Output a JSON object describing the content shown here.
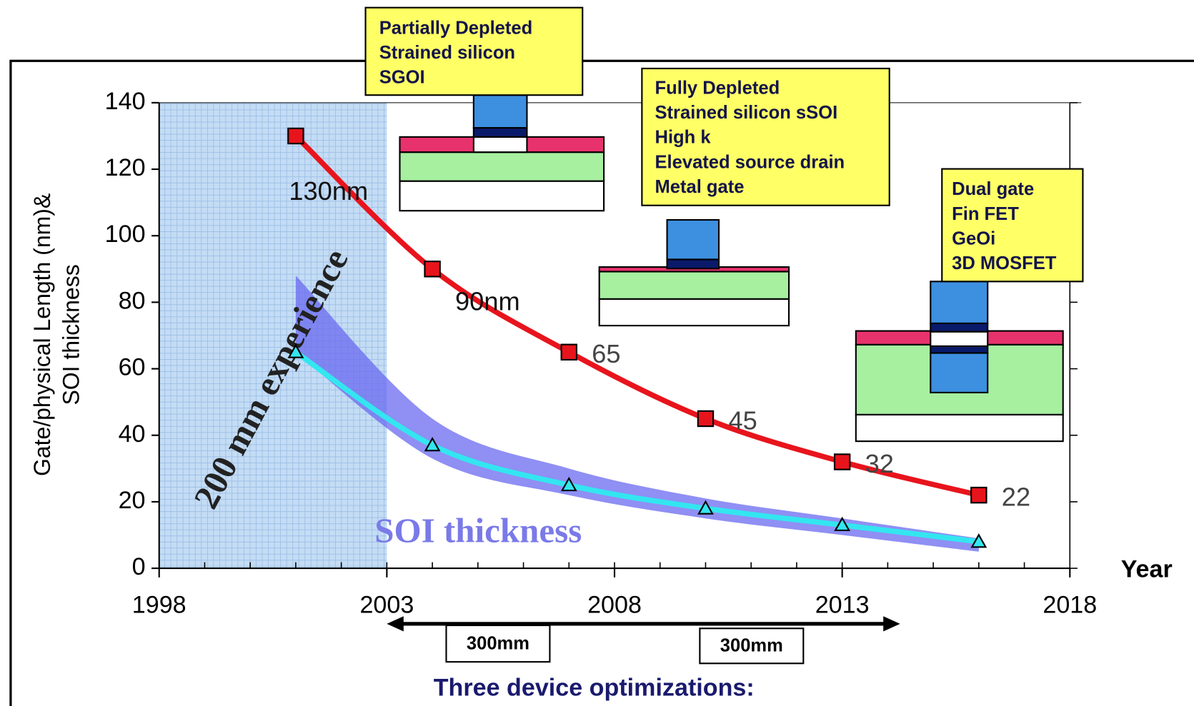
{
  "chart_data": {
    "type": "line",
    "y_label": [
      "Gate/physical Length (nm)&",
      "SOI thickness"
    ],
    "x_label": "Year",
    "x": [
      2001,
      2004,
      2007,
      2010,
      2013,
      2016
    ],
    "gate_length": {
      "values": [
        130,
        90,
        65,
        45,
        32,
        22
      ],
      "value_labels": [
        "130nm",
        "90nm",
        "65",
        "45",
        "32",
        "22"
      ],
      "color": "#e8141c"
    },
    "soi": {
      "name": "SOI thickness",
      "values": [
        65,
        37,
        25,
        18,
        13,
        8
      ],
      "color": "#33e6f0"
    },
    "soi_band": {
      "upper": [
        88,
        45,
        30,
        21,
        15,
        9
      ],
      "lower": [
        65,
        33,
        22,
        15,
        10,
        5
      ],
      "color": "#6a6af0"
    },
    "shaded_range": [
      1998,
      2003
    ],
    "xlim": [
      1998,
      2018
    ],
    "xticks": [
      1998,
      2003,
      2008,
      2013,
      2018
    ],
    "ylim": [
      0,
      140
    ],
    "yticks": [
      0,
      20,
      40,
      60,
      80,
      100,
      120,
      140
    ],
    "annotations": {
      "experience": "200 mm experience",
      "boxes": [
        [
          "Partially Depleted",
          "Strained silicon",
          "SGOI"
        ],
        [
          "Fully Depleted",
          "Strained silicon sSOI",
          "High k",
          "Elevated source drain",
          "Metal gate"
        ],
        [
          "Dual gate",
          "Fin FET",
          "GeOi",
          "3D MOSFET"
        ]
      ],
      "wafer": [
        "300mm",
        "300mm"
      ],
      "footer": "Three device optimizations:"
    }
  }
}
